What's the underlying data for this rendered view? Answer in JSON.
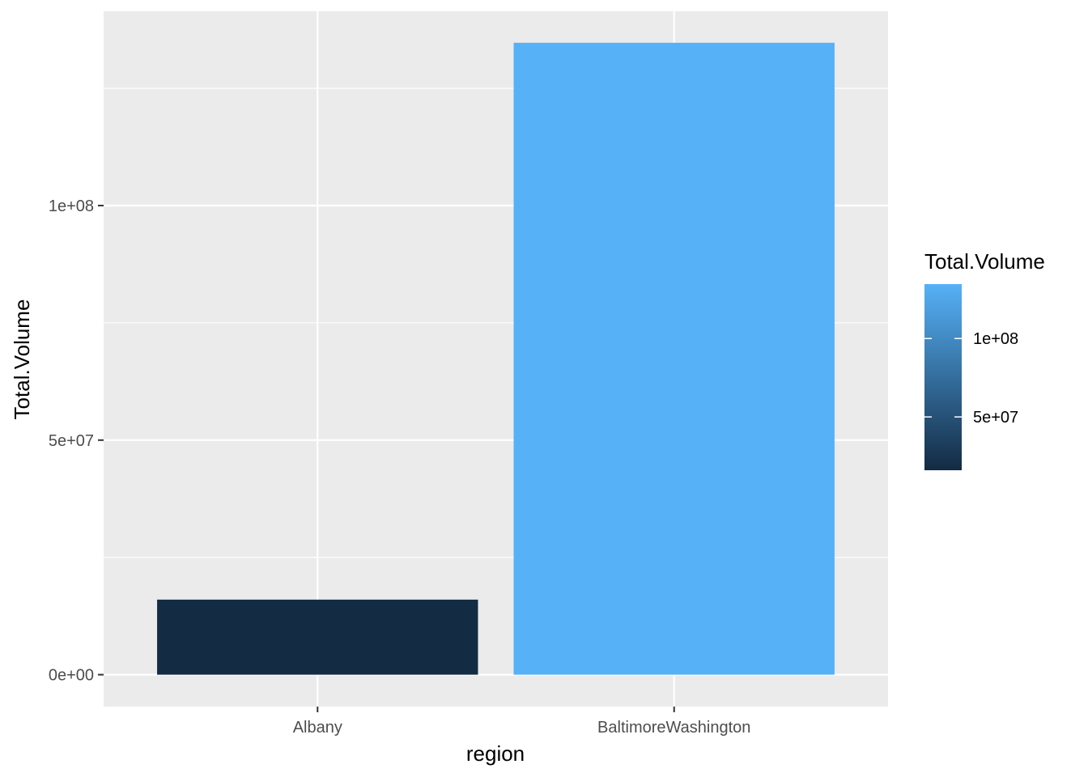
{
  "chart_data": {
    "type": "bar",
    "categories": [
      "Albany",
      "BaltimoreWashington"
    ],
    "values": [
      16000000,
      134700000
    ],
    "xlabel": "region",
    "ylabel": "Total.Volume",
    "ylim": [
      -6800000,
      141400000
    ],
    "y_ticks": [
      {
        "value": 0,
        "label": "0e+00"
      },
      {
        "value": 50000000,
        "label": "5e+07"
      },
      {
        "value": 100000000,
        "label": "1e+08"
      }
    ],
    "y_minor_ticks": [
      25000000,
      75000000,
      125000000
    ],
    "grid": true,
    "panel_background": "#ebebeb",
    "grid_color": "#ffffff",
    "fill_scale": {
      "low_color": "#132b43",
      "high_color": "#56b1f7",
      "range": [
        16000000,
        134700000
      ]
    },
    "legend": {
      "title": "Total.Volume",
      "placement": "right",
      "breaks": [
        {
          "value": 50000000,
          "label": "5e+07"
        },
        {
          "value": 100000000,
          "label": "1e+08"
        }
      ]
    }
  }
}
